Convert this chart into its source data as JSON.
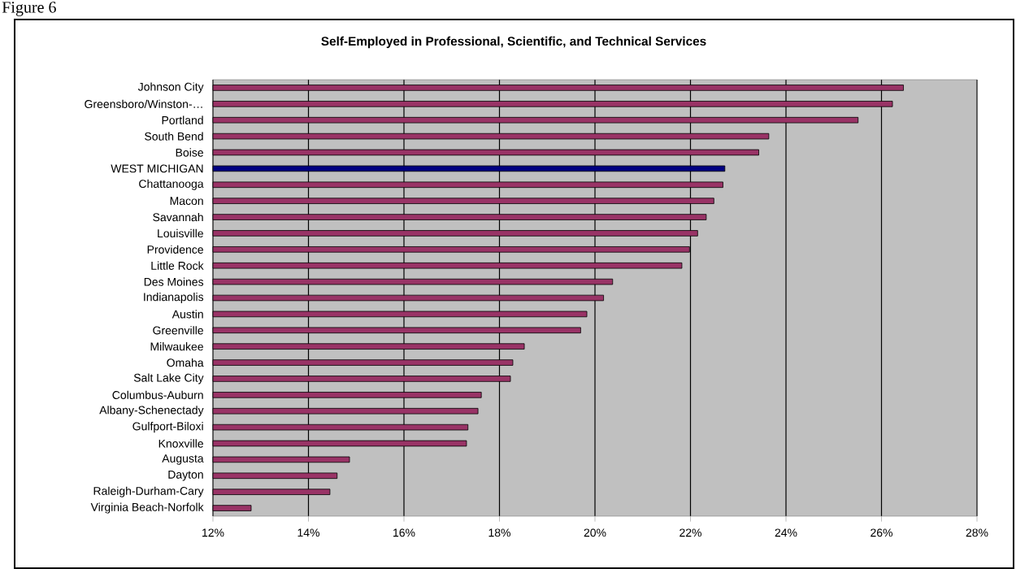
{
  "chart_data": {
    "type": "bar",
    "orientation": "horizontal",
    "title": "Self-Employed in Professional, Scientific, and Technical Services",
    "annotations": [
      "Figure 6"
    ],
    "categories": [
      "Johnson City",
      "Greensboro/Winston-…",
      "Portland",
      "South Bend",
      "Boise",
      "WEST MICHIGAN",
      "Chattanooga",
      "Macon",
      "Savannah",
      "Louisville",
      "Providence",
      "Little Rock",
      "Des Moines",
      "Indianapolis",
      "Austin",
      "Greenville",
      "Milwaukee",
      "Omaha",
      "Salt Lake City",
      "Columbus-Auburn",
      "Albany-Schenectady",
      "Gulfport-Biloxi",
      "Knoxville",
      "Augusta",
      "Dayton",
      "Raleigh-Durham-Cary",
      "Virginia Beach-Norfolk"
    ],
    "values": [
      26.46,
      26.23,
      25.51,
      23.64,
      23.43,
      22.72,
      22.68,
      22.49,
      22.33,
      22.15,
      21.98,
      21.82,
      20.37,
      20.18,
      19.83,
      19.7,
      18.52,
      18.28,
      18.23,
      17.62,
      17.55,
      17.34,
      17.31,
      14.86,
      14.6,
      14.45,
      12.8
    ],
    "colors": [
      "#993366",
      "#993366",
      "#993366",
      "#993366",
      "#993366",
      "#000080",
      "#993366",
      "#993366",
      "#993366",
      "#993366",
      "#993366",
      "#993366",
      "#993366",
      "#993366",
      "#993366",
      "#993366",
      "#993366",
      "#993366",
      "#993366",
      "#993366",
      "#993366",
      "#993366",
      "#993366",
      "#993366",
      "#993366",
      "#993366",
      "#993366"
    ],
    "xlim": [
      12,
      28
    ],
    "xticks": [
      {
        "value": 12,
        "label": "12%"
      },
      {
        "value": 14,
        "label": "14%"
      },
      {
        "value": 16,
        "label": "16%"
      },
      {
        "value": 18,
        "label": "18%"
      },
      {
        "value": 20,
        "label": "20%"
      },
      {
        "value": 22,
        "label": "22%"
      },
      {
        "value": 24,
        "label": "24%"
      },
      {
        "value": 26,
        "label": "26%"
      },
      {
        "value": 28,
        "label": "28%"
      }
    ],
    "grid": "x"
  }
}
